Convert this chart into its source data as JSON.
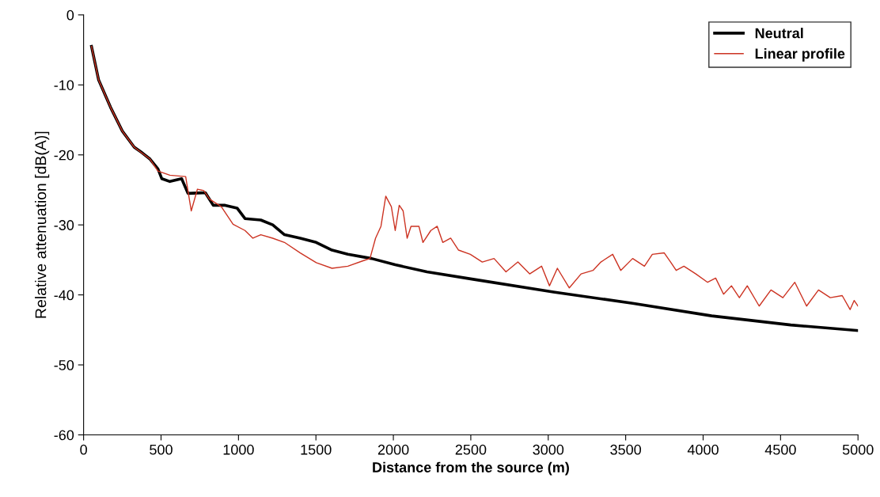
{
  "chart_data": {
    "type": "line",
    "xlabel": "Distance from the source (m)",
    "ylabel": "Relative attenuation [dB(A)]",
    "xlim": [
      0,
      5000
    ],
    "ylim": [
      -60,
      0
    ],
    "xticks": [
      0,
      500,
      1000,
      1500,
      2000,
      2500,
      3000,
      3500,
      4000,
      4500,
      5000
    ],
    "yticks": [
      -60,
      -50,
      -40,
      -30,
      -20,
      -10,
      0
    ],
    "grid": false,
    "legend": "top right",
    "marker": "none",
    "line_style": "solid",
    "series": [
      {
        "name": "Neutral",
        "color": "#000000",
        "x": [
          51,
          97,
          174,
          250,
          327,
          378,
          429,
          480,
          505,
          557,
          633,
          674,
          786,
          837,
          914,
          991,
          1042,
          1144,
          1221,
          1297,
          1399,
          1502,
          1604,
          1706,
          1859,
          2012,
          2217,
          2523,
          3034,
          3545,
          4055,
          4566,
          5000
        ],
        "values": [
          -4.5,
          -9.3,
          -13.2,
          -16.6,
          -18.9,
          -19.7,
          -20.6,
          -22,
          -23.4,
          -23.8,
          -23.4,
          -25.5,
          -25.4,
          -27.2,
          -27.2,
          -27.6,
          -29.1,
          -29.3,
          -30,
          -31.4,
          -31.9,
          -32.5,
          -33.6,
          -34.2,
          -34.8,
          -35.7,
          -36.7,
          -37.8,
          -39.6,
          -41.2,
          -43,
          -44.3,
          -45.1
        ]
      },
      {
        "name": "Linear profile",
        "color": "#cc3322",
        "x": [
          51,
          97,
          174,
          250,
          327,
          429,
          480,
          557,
          659,
          695,
          735,
          776,
          812,
          889,
          965,
          1042,
          1093,
          1144,
          1221,
          1297,
          1399,
          1502,
          1604,
          1706,
          1808,
          1849,
          1885,
          1920,
          1951,
          1987,
          2012,
          2038,
          2063,
          2089,
          2114,
          2165,
          2191,
          2242,
          2283,
          2319,
          2370,
          2421,
          2497,
          2574,
          2650,
          2727,
          2804,
          2880,
          2957,
          3008,
          3059,
          3136,
          3212,
          3289,
          3340,
          3416,
          3468,
          3545,
          3621,
          3672,
          3749,
          3790,
          3826,
          3876,
          3953,
          4029,
          4081,
          4132,
          4183,
          4234,
          4285,
          4362,
          4438,
          4515,
          4592,
          4668,
          4745,
          4821,
          4898,
          4949,
          4975,
          5000
        ],
        "values": [
          -4.5,
          -9.3,
          -13.2,
          -16.6,
          -18.9,
          -20.6,
          -22.3,
          -22.9,
          -23.1,
          -28,
          -24.9,
          -25.1,
          -26.3,
          -27.4,
          -29.9,
          -30.8,
          -31.9,
          -31.4,
          -31.9,
          -32.5,
          -34,
          -35.4,
          -36.2,
          -35.9,
          -35.1,
          -34.8,
          -31.9,
          -30.2,
          -25.9,
          -27.4,
          -30.8,
          -27.2,
          -28,
          -31.9,
          -30.2,
          -30.2,
          -32.5,
          -30.8,
          -30.2,
          -32.5,
          -31.9,
          -33.6,
          -34.2,
          -35.3,
          -34.8,
          -36.7,
          -35.3,
          -37,
          -35.9,
          -38.7,
          -36.2,
          -39,
          -37,
          -36.5,
          -35.3,
          -34.2,
          -36.5,
          -34.8,
          -35.9,
          -34.2,
          -34,
          -35.3,
          -36.5,
          -35.9,
          -37,
          -38.2,
          -37.6,
          -39.9,
          -38.7,
          -40.4,
          -38.7,
          -41.6,
          -39.3,
          -40.4,
          -38.2,
          -41.6,
          -39.3,
          -40.4,
          -40.1,
          -42.1,
          -40.8,
          -41.6
        ]
      }
    ]
  }
}
